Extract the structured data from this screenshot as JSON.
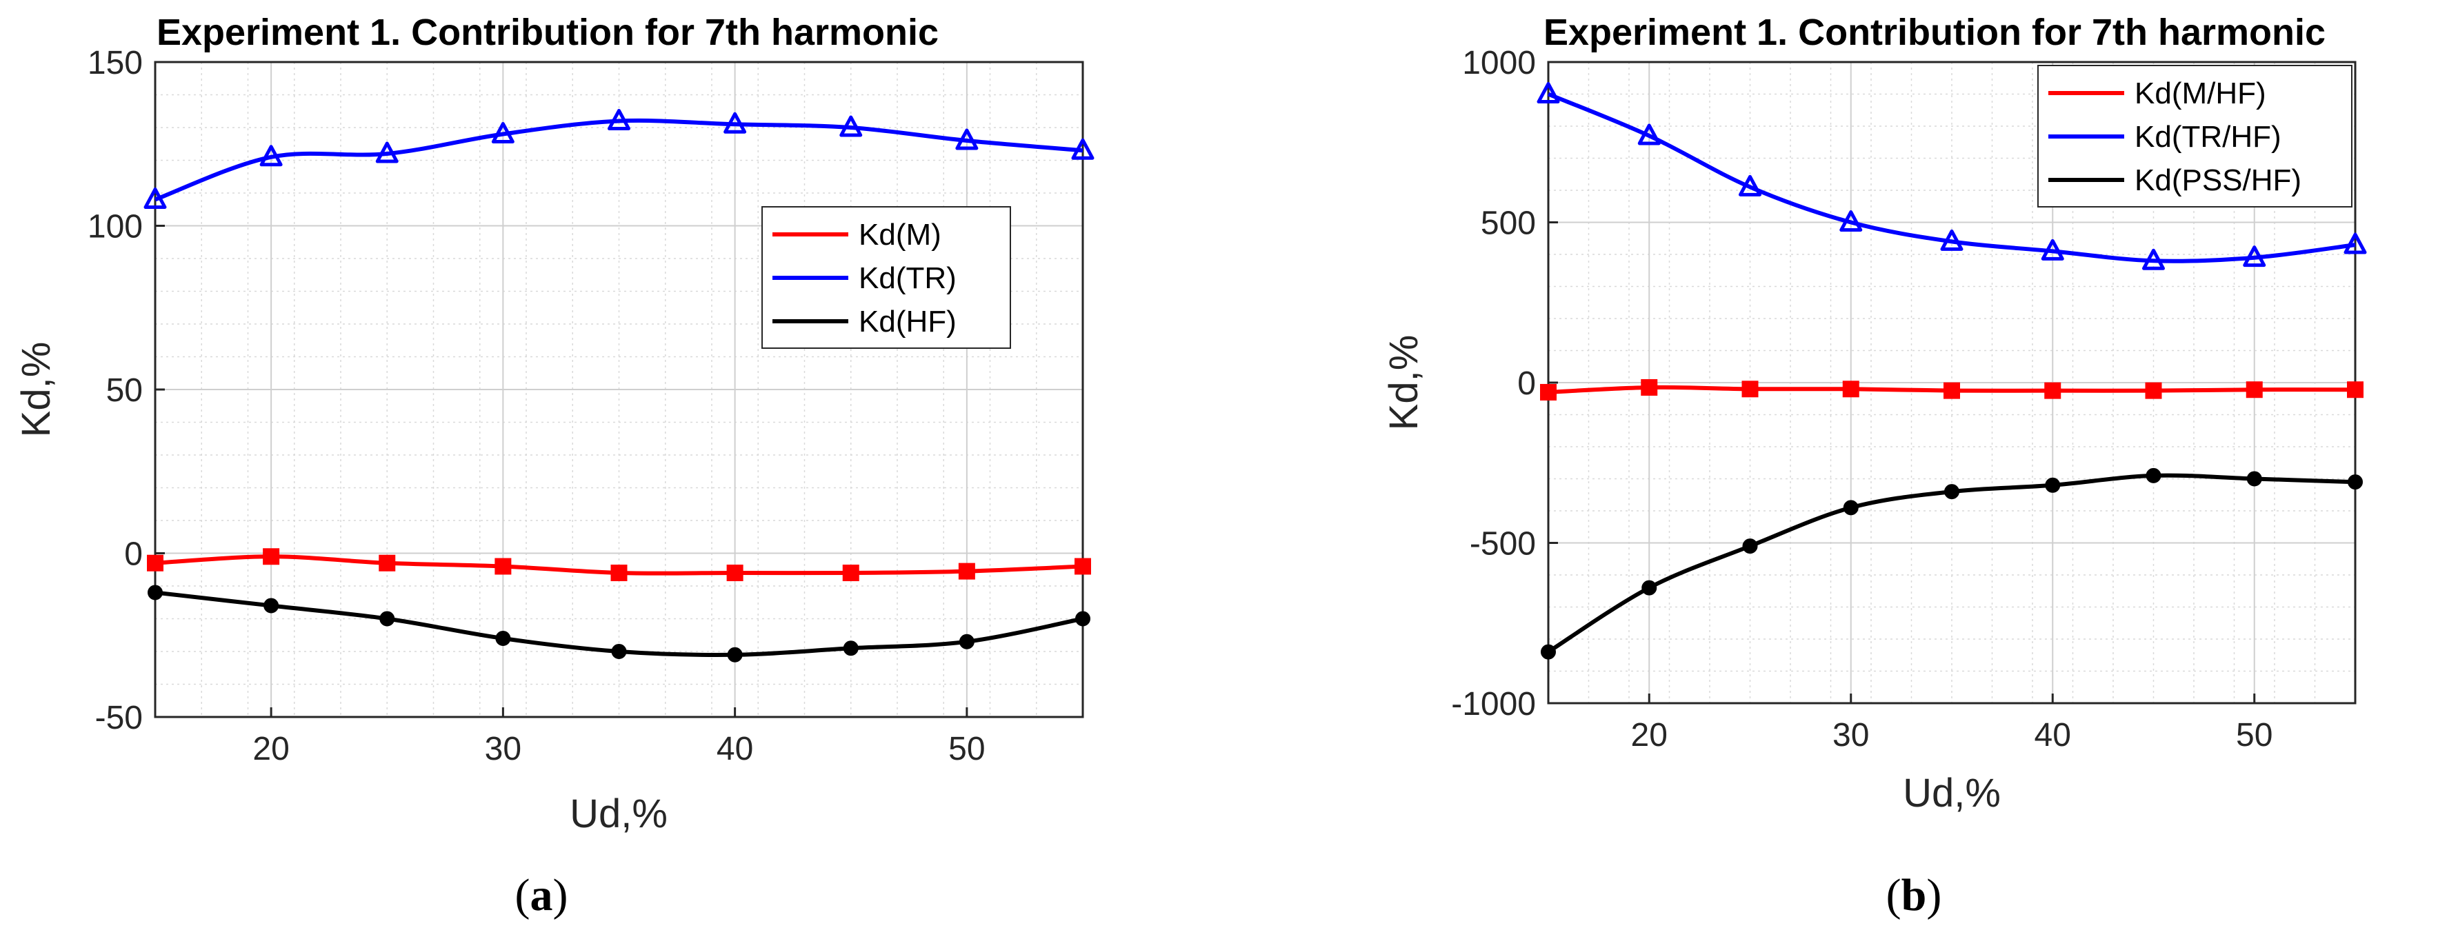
{
  "chart_data": [
    {
      "type": "line",
      "title": "Experiment 1. Contribution for 7th harmonic",
      "xlabel": "Ud,%",
      "ylabel": "Kd,%",
      "xlim": [
        15,
        55
      ],
      "ylim": [
        -50,
        150
      ],
      "xticks": [
        20,
        30,
        40,
        50
      ],
      "yticks": [
        -50,
        0,
        50,
        100,
        150
      ],
      "ytick_labels": [
        "-50",
        "0",
        "50",
        "100",
        "150"
      ],
      "grid": true,
      "legend_position": "center-right",
      "caption": "a",
      "x": [
        15,
        20,
        25,
        30,
        35,
        40,
        45,
        50,
        55
      ],
      "series": [
        {
          "name": "Kd(M)",
          "color": "#ff0000",
          "marker": "square",
          "values": [
            -3,
            -1,
            -3,
            -4,
            -6,
            -6,
            -6,
            -5.5,
            -4
          ]
        },
        {
          "name": "Kd(TR)",
          "color": "#0000ff",
          "marker": "triangle",
          "values": [
            108,
            121,
            122,
            128,
            132,
            131,
            130,
            126,
            123
          ]
        },
        {
          "name": "Kd(HF)",
          "color": "#000000",
          "marker": "circle",
          "values": [
            -12,
            -16,
            -20,
            -26,
            -30,
            -31,
            -29,
            -27,
            -20
          ]
        }
      ]
    },
    {
      "type": "line",
      "title": "Experiment 1. Contribution for 7th harmonic",
      "xlabel": "Ud,%",
      "ylabel": "Kd,%",
      "xlim": [
        15,
        55
      ],
      "ylim": [
        -1000,
        1000
      ],
      "xticks": [
        20,
        30,
        40,
        50
      ],
      "yticks": [
        -1000,
        -500,
        0,
        500,
        1000
      ],
      "ytick_labels": [
        "-1000",
        "-500",
        "0",
        "500",
        "1000"
      ],
      "grid": true,
      "legend_position": "top-right",
      "caption": "b",
      "x": [
        15,
        20,
        25,
        30,
        35,
        40,
        45,
        50,
        55
      ],
      "series": [
        {
          "name": "Kd(M/HF)",
          "color": "#ff0000",
          "marker": "square",
          "values": [
            -30,
            -15,
            -20,
            -20,
            -25,
            -25,
            -25,
            -22,
            -22
          ]
        },
        {
          "name": "Kd(TR/HF)",
          "color": "#0000ff",
          "marker": "triangle",
          "values": [
            900,
            770,
            610,
            500,
            440,
            410,
            380,
            390,
            430
          ]
        },
        {
          "name": "Kd(PSS/HF)",
          "color": "#000000",
          "marker": "circle",
          "values": [
            -840,
            -640,
            -510,
            -390,
            -340,
            -320,
            -290,
            -300,
            -310
          ]
        }
      ]
    }
  ]
}
